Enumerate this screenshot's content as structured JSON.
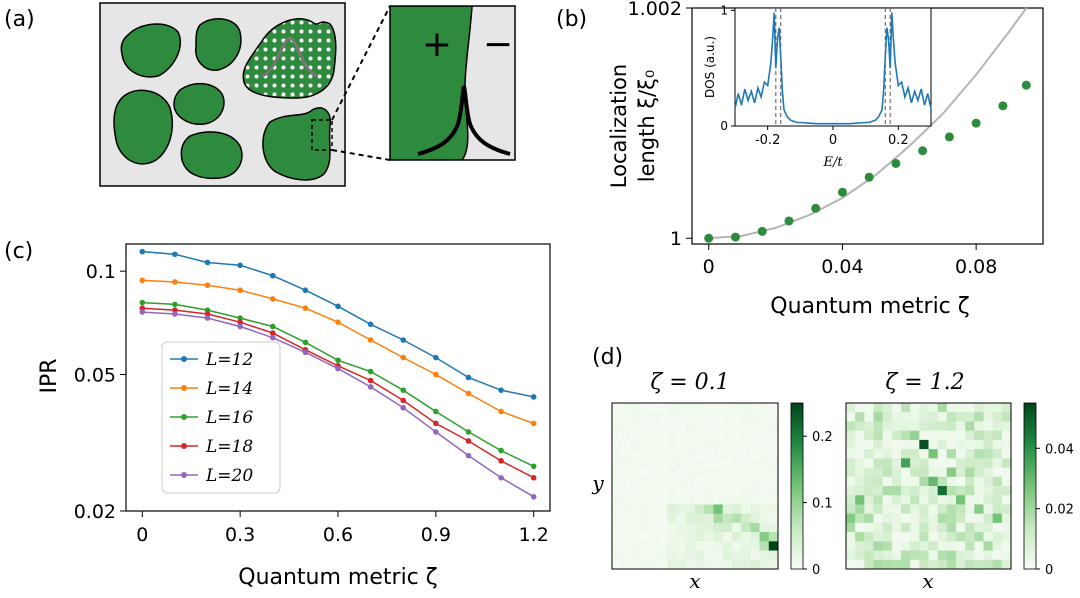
{
  "panel_labels": {
    "a": "(a)",
    "b": "(b)",
    "c": "(c)",
    "d": "(d)"
  },
  "panel_a": {
    "plus_sign": "+",
    "minus_sign": "−",
    "colors": {
      "grain": "#2e8b3e",
      "background": "#e6e6e6"
    }
  },
  "chart_data": [
    {
      "id": "b",
      "type": "scatter",
      "xlabel": "Quantum metric ζ",
      "ylabel_line1": "Localization",
      "ylabel_line2": "length ξ/ξ₀",
      "xlim": [
        -0.005,
        0.1
      ],
      "ylim": [
        0.99995,
        1.002
      ],
      "xticks": [
        0,
        0.04,
        0.08
      ],
      "xtick_labels": [
        "0",
        "0.04",
        "0.08"
      ],
      "yticks": [
        1.0,
        1.002
      ],
      "ytick_labels": [
        "1",
        "1.002"
      ],
      "points": {
        "color": "#2e8b3e",
        "x": [
          0,
          0.008,
          0.016,
          0.024,
          0.032,
          0.04,
          0.048,
          0.056,
          0.064,
          0.072,
          0.08,
          0.088,
          0.095
        ],
        "y": [
          1.0,
          1.00001,
          1.00006,
          1.00015,
          1.00026,
          1.0004,
          1.00053,
          1.00065,
          1.00076,
          1.00088,
          1.001,
          1.00115,
          1.00133
        ]
      },
      "fit_curve": {
        "color": "#b5b5b5",
        "x": [
          0,
          0.01,
          0.02,
          0.03,
          0.04,
          0.05,
          0.06,
          0.07,
          0.08,
          0.09,
          0.095
        ],
        "y": [
          1.0,
          1.00002,
          1.00009,
          1.0002,
          1.00035,
          1.00055,
          1.0008,
          1.00108,
          1.00142,
          1.0018,
          1.002
        ]
      },
      "inset": {
        "type": "line",
        "xlabel": "E/t",
        "ylabel": "DOS (a.u.)",
        "xlim": [
          -0.3,
          0.3
        ],
        "ylim": [
          0,
          1.02
        ],
        "xticks": [
          -0.2,
          0,
          0.2
        ],
        "xtick_labels": [
          "-0.2",
          "0",
          "0.2"
        ],
        "yticks": [
          0,
          1
        ],
        "ytick_labels": [
          "0",
          "1"
        ],
        "color": "#1f77b4",
        "dashed_lines_x": [
          -0.175,
          -0.16,
          0.16,
          0.175
        ],
        "x": [
          -0.3,
          -0.29,
          -0.28,
          -0.27,
          -0.26,
          -0.25,
          -0.24,
          -0.23,
          -0.22,
          -0.21,
          -0.2,
          -0.19,
          -0.185,
          -0.18,
          -0.175,
          -0.17,
          -0.165,
          -0.16,
          -0.155,
          -0.15,
          -0.14,
          -0.13,
          -0.12,
          -0.11,
          -0.1,
          -0.05,
          0,
          0.05,
          0.1,
          0.11,
          0.12,
          0.13,
          0.14,
          0.15,
          0.155,
          0.16,
          0.165,
          0.17,
          0.175,
          0.18,
          0.185,
          0.19,
          0.2,
          0.21,
          0.22,
          0.23,
          0.24,
          0.25,
          0.26,
          0.27,
          0.28,
          0.29,
          0.3
        ],
        "y": [
          0.15,
          0.28,
          0.18,
          0.32,
          0.22,
          0.3,
          0.2,
          0.33,
          0.25,
          0.38,
          0.35,
          0.55,
          0.75,
          0.98,
          0.5,
          0.75,
          0.85,
          0.6,
          0.3,
          0.14,
          0.08,
          0.05,
          0.04,
          0.03,
          0.03,
          0.02,
          0.02,
          0.02,
          0.03,
          0.03,
          0.04,
          0.05,
          0.08,
          0.14,
          0.3,
          0.6,
          0.85,
          0.75,
          0.5,
          0.98,
          0.75,
          0.55,
          0.35,
          0.38,
          0.25,
          0.33,
          0.2,
          0.3,
          0.22,
          0.32,
          0.18,
          0.28,
          0.15
        ]
      }
    },
    {
      "id": "c",
      "type": "line",
      "xlabel": "Quantum metric ζ",
      "ylabel": "IPR",
      "yscale": "log",
      "xlim": [
        -0.05,
        1.25
      ],
      "ylim": [
        0.02,
        0.12
      ],
      "xticks": [
        0,
        0.3,
        0.6,
        0.9,
        1.2
      ],
      "xtick_labels": [
        "0",
        "0.3",
        "0.6",
        "0.9",
        "1.2"
      ],
      "yticks": [
        0.02,
        0.05,
        0.1
      ],
      "ytick_labels": [
        "0.02",
        "0.05",
        "0.1"
      ],
      "legend_position": "lower-left",
      "x": [
        0,
        0.1,
        0.2,
        0.3,
        0.4,
        0.5,
        0.6,
        0.7,
        0.8,
        0.9,
        1.0,
        1.1,
        1.2
      ],
      "series": [
        {
          "name": "L=12",
          "color": "#1f77b4",
          "values": [
            0.114,
            0.112,
            0.106,
            0.104,
            0.097,
            0.088,
            0.079,
            0.07,
            0.063,
            0.056,
            0.049,
            0.045,
            0.043
          ]
        },
        {
          "name": "L=14",
          "color": "#ff7f0e",
          "values": [
            0.094,
            0.093,
            0.091,
            0.088,
            0.083,
            0.078,
            0.071,
            0.063,
            0.056,
            0.05,
            0.044,
            0.039,
            0.036
          ]
        },
        {
          "name": "L=16",
          "color": "#2ca02c",
          "values": [
            0.081,
            0.08,
            0.077,
            0.073,
            0.069,
            0.062,
            0.055,
            0.051,
            0.045,
            0.039,
            0.034,
            0.03,
            0.027
          ]
        },
        {
          "name": "L=18",
          "color": "#d62728",
          "values": [
            0.078,
            0.077,
            0.075,
            0.071,
            0.066,
            0.059,
            0.053,
            0.048,
            0.042,
            0.036,
            0.032,
            0.028,
            0.025
          ]
        },
        {
          "name": "L=20",
          "color": "#9467bd",
          "values": [
            0.076,
            0.075,
            0.073,
            0.069,
            0.064,
            0.058,
            0.052,
            0.046,
            0.04,
            0.034,
            0.029,
            0.025,
            0.022
          ]
        }
      ]
    },
    {
      "id": "d1",
      "type": "heatmap",
      "title": "ζ = 0.1",
      "xlabel": "x",
      "ylabel": "y",
      "colormap": "Greens",
      "colorbar_range": [
        0,
        0.25
      ],
      "colorbar_ticks": [
        0,
        0.1,
        0.2
      ],
      "colorbar_tick_labels": [
        "0",
        "0.1",
        "0.2"
      ]
    },
    {
      "id": "d2",
      "type": "heatmap",
      "title": "ζ = 1.2",
      "xlabel": "x",
      "colormap": "Greens",
      "colorbar_range": [
        0,
        0.055
      ],
      "colorbar_ticks": [
        0,
        0.02,
        0.04
      ],
      "colorbar_tick_labels": [
        "0",
        "0.02",
        "0.04"
      ]
    }
  ]
}
